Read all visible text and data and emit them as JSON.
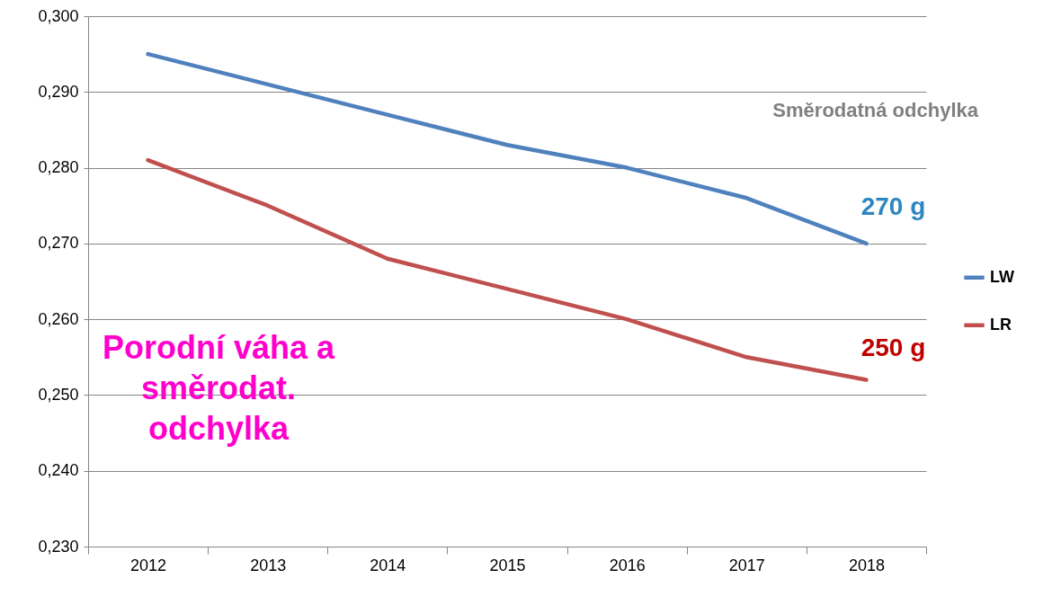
{
  "chart_data": {
    "type": "line",
    "categories": [
      "2012",
      "2013",
      "2014",
      "2015",
      "2016",
      "2017",
      "2018"
    ],
    "series": [
      {
        "name": "LW",
        "color": "#4f81bd",
        "values": [
          0.295,
          0.291,
          0.287,
          0.283,
          0.28,
          0.276,
          0.27
        ]
      },
      {
        "name": "LR",
        "color": "#c0504d",
        "values": [
          0.281,
          0.275,
          0.268,
          0.264,
          0.26,
          0.255,
          0.252
        ]
      }
    ],
    "ylim": [
      0.23,
      0.3
    ],
    "yticks": [
      {
        "value": 0.23,
        "label": "0,230"
      },
      {
        "value": 0.24,
        "label": "0,240"
      },
      {
        "value": 0.25,
        "label": "0,250"
      },
      {
        "value": 0.26,
        "label": "0,260"
      },
      {
        "value": 0.27,
        "label": "0,270"
      },
      {
        "value": 0.28,
        "label": "0,280"
      },
      {
        "value": 0.29,
        "label": "0,290"
      },
      {
        "value": 0.3,
        "label": "0,300"
      }
    ],
    "grid": "y",
    "legend": "right",
    "marker": "none",
    "line_style": "solid",
    "annotations": [
      "Směrodatná odchylka",
      {
        "text": "270 g",
        "x": "2018",
        "y": 0.27
      },
      {
        "text": "250 g",
        "x": "2018",
        "y": 0.252
      },
      "Porodní váha a\nsměrodat.\nodchylka"
    ]
  }
}
